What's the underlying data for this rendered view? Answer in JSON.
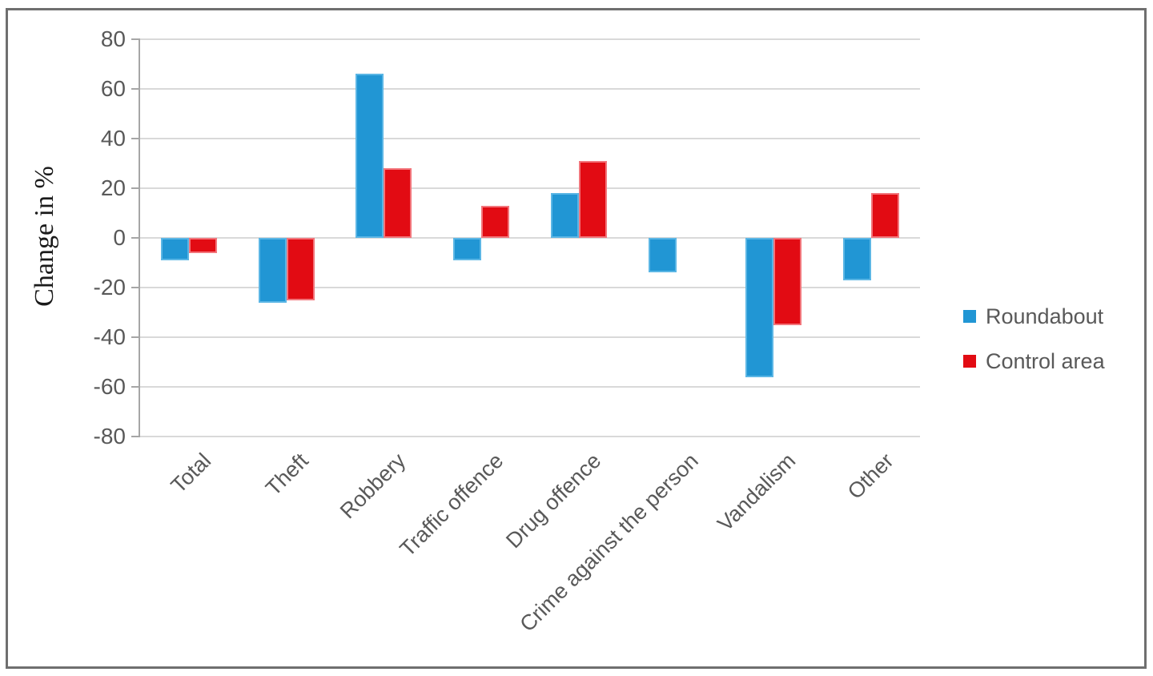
{
  "chart_data": {
    "type": "bar",
    "title": "",
    "ylabel": "Change in %",
    "categories": [
      "Total",
      "Theft",
      "Robbery",
      "Traffic offence",
      "Drug offence",
      "Crime against the person",
      "Vandalism",
      "Other"
    ],
    "series": [
      {
        "name": "Roundabout",
        "color": "#2196d4",
        "edge_color": "#5bb6e5",
        "values": [
          -9,
          -26,
          66,
          -9,
          18,
          -14,
          -56,
          -17
        ]
      },
      {
        "name": "Control area",
        "color": "#e20b13",
        "edge_color": "#f2757b",
        "values": [
          -6,
          -25,
          28,
          13,
          31,
          0,
          -35,
          18
        ]
      }
    ],
    "ylim": [
      -80,
      80
    ],
    "ytick_step": 20,
    "yticks": [
      "80",
      "60",
      "40",
      "20",
      "0",
      "-20",
      "-40",
      "-60",
      "-80"
    ],
    "grid": true,
    "legend_position": "right-middle"
  },
  "colors": {
    "background": "#ffffff",
    "frame_border": "#6f6f6f",
    "gridline": "#d9d9d9",
    "axis": "#a6a6a6",
    "tick_text": "#595959",
    "ylabel_text": "#1a1a1a"
  }
}
